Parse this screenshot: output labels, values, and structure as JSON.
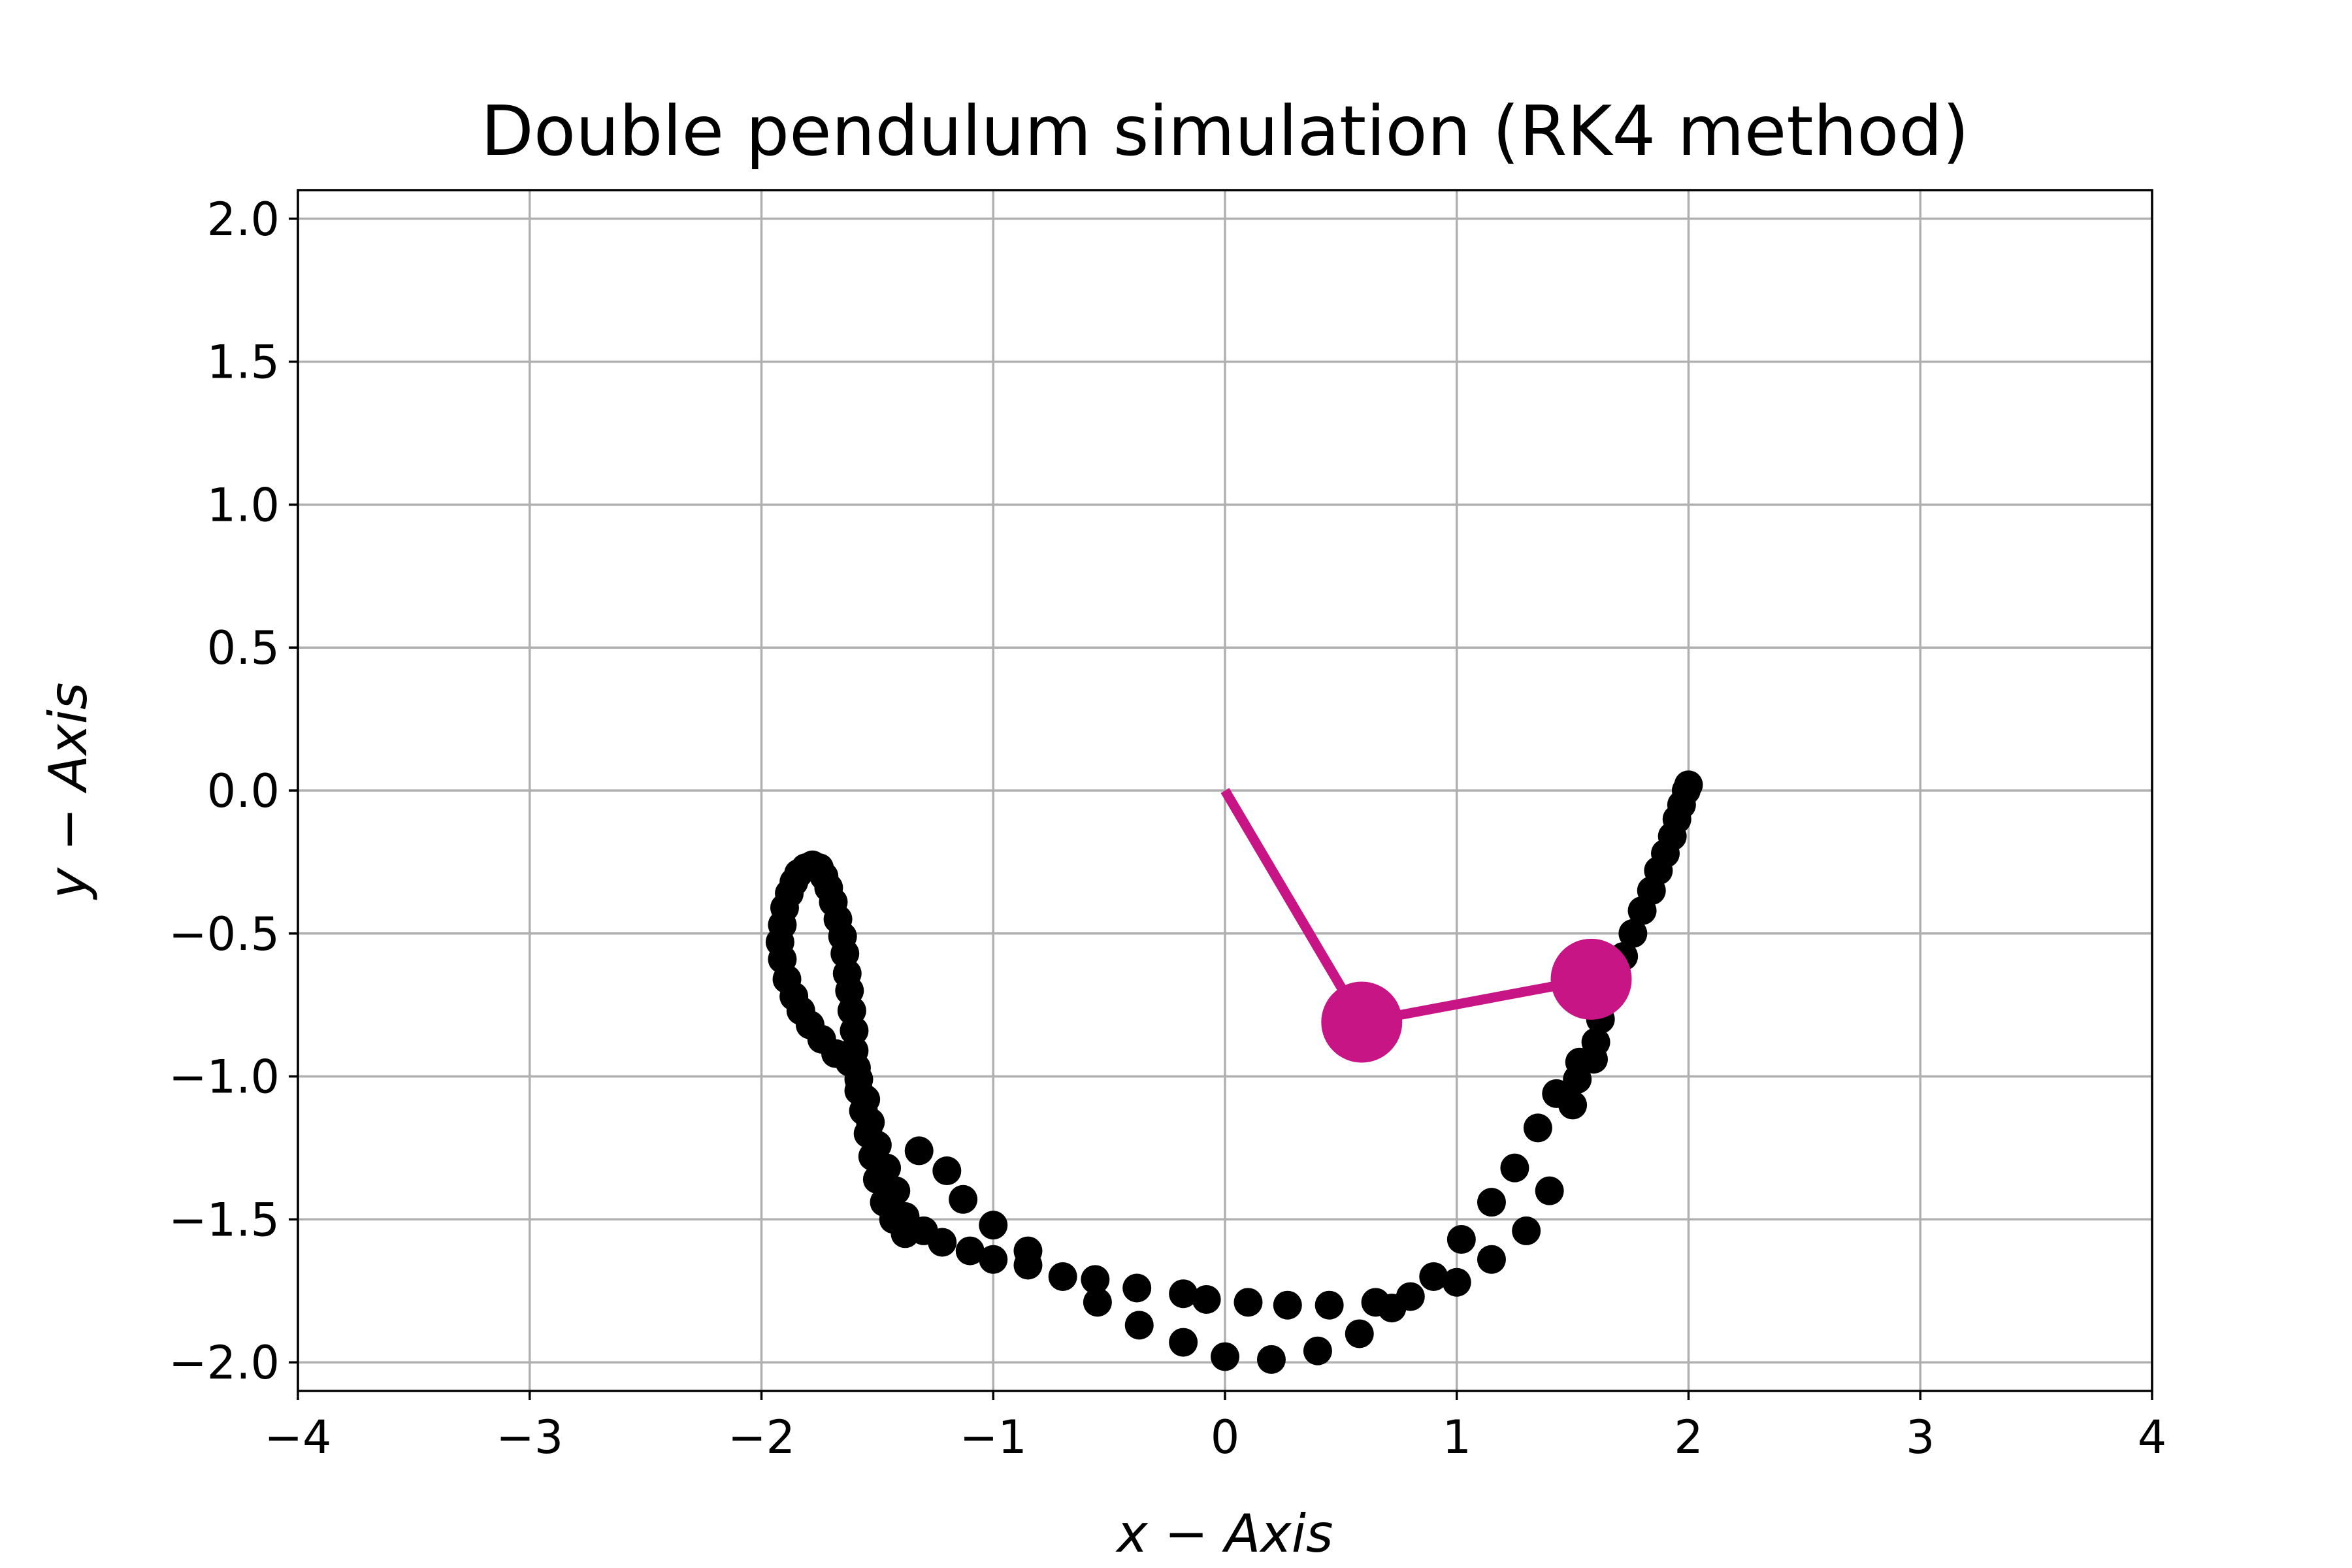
{
  "chart_data": {
    "type": "scatter",
    "title": "Double pendulum simulation (RK4 method)",
    "xlabel": "x − Axis",
    "ylabel": "y − Axis",
    "xlim": [
      -4,
      4
    ],
    "ylim": [
      -2.1,
      2.1
    ],
    "grid": true,
    "x_ticks": [
      -4,
      -3,
      -2,
      -1,
      0,
      1,
      2,
      3,
      4
    ],
    "x_tick_labels": [
      "−4",
      "−3",
      "−2",
      "−1",
      "0",
      "1",
      "2",
      "3",
      "4"
    ],
    "y_ticks": [
      2.0,
      1.5,
      1.0,
      0.5,
      0.0,
      -0.5,
      -1.0,
      -1.5,
      -2.0
    ],
    "y_tick_labels": [
      "2.0",
      "1.5",
      "1.0",
      "0.5",
      "0.0",
      "−0.5",
      "−1.0",
      "−1.5",
      "−2.0"
    ],
    "colors": {
      "trail": "#000000",
      "pendulum": "#c71585",
      "grid": "#b0b0b0"
    },
    "pendulum": {
      "pivot": [
        0.0,
        0.0
      ],
      "bob1": [
        0.59,
        -0.81
      ],
      "bob2": [
        1.58,
        -0.66
      ]
    },
    "series": [
      {
        "values": [
          [
            2.0,
            0.02
          ],
          [
            1.99,
            0.0
          ],
          [
            1.97,
            -0.05
          ],
          [
            1.95,
            -0.1
          ],
          [
            1.93,
            -0.16
          ],
          [
            1.9,
            -0.22
          ],
          [
            1.87,
            -0.28
          ],
          [
            1.84,
            -0.35
          ],
          [
            1.8,
            -0.42
          ],
          [
            1.76,
            -0.5
          ],
          [
            1.72,
            -0.58
          ],
          [
            1.68,
            -0.65
          ],
          [
            1.65,
            -0.72
          ],
          [
            1.62,
            -0.8
          ],
          [
            1.6,
            -0.88
          ],
          [
            1.59,
            -0.94
          ],
          [
            1.53,
            -0.95
          ],
          [
            1.52,
            -1.01
          ],
          [
            1.5,
            -1.1
          ],
          [
            1.43,
            -1.06
          ],
          [
            1.35,
            -1.18
          ],
          [
            1.4,
            -1.4
          ],
          [
            1.25,
            -1.32
          ],
          [
            1.15,
            -1.44
          ],
          [
            1.3,
            -1.54
          ],
          [
            1.15,
            -1.64
          ],
          [
            1.02,
            -1.57
          ],
          [
            1.0,
            -1.72
          ],
          [
            0.9,
            -1.7
          ],
          [
            0.8,
            -1.77
          ],
          [
            0.72,
            -1.81
          ],
          [
            0.65,
            -1.79
          ],
          [
            0.58,
            -1.9
          ],
          [
            0.45,
            -1.8
          ],
          [
            0.4,
            -1.96
          ],
          [
            0.27,
            -1.8
          ],
          [
            0.2,
            -1.99
          ],
          [
            0.1,
            -1.79
          ],
          [
            0.0,
            -1.98
          ],
          [
            -0.08,
            -1.78
          ],
          [
            -0.18,
            -1.76
          ],
          [
            -0.18,
            -1.93
          ],
          [
            -0.37,
            -1.87
          ],
          [
            -0.38,
            -1.74
          ],
          [
            -0.55,
            -1.79
          ],
          [
            -0.56,
            -1.71
          ],
          [
            -0.7,
            -1.7
          ],
          [
            -0.85,
            -1.66
          ],
          [
            -0.85,
            -1.61
          ],
          [
            -1.0,
            -1.64
          ],
          [
            -1.0,
            -1.52
          ],
          [
            -1.1,
            -1.61
          ],
          [
            -1.13,
            -1.43
          ],
          [
            -1.22,
            -1.58
          ],
          [
            -1.2,
            -1.33
          ],
          [
            -1.3,
            -1.54
          ],
          [
            -1.32,
            -1.26
          ],
          [
            -1.38,
            -1.49
          ],
          [
            -1.42,
            -1.4
          ],
          [
            -1.46,
            -1.32
          ],
          [
            -1.5,
            -1.24
          ],
          [
            -1.53,
            -1.16
          ],
          [
            -1.55,
            -1.08
          ],
          [
            -1.58,
            -1.01
          ],
          [
            -1.62,
            -0.95
          ],
          [
            -1.68,
            -0.92
          ],
          [
            -1.74,
            -0.87
          ],
          [
            -1.79,
            -0.82
          ],
          [
            -1.83,
            -0.77
          ],
          [
            -1.86,
            -0.72
          ],
          [
            -1.89,
            -0.66
          ],
          [
            -1.91,
            -0.59
          ],
          [
            -1.92,
            -0.53
          ],
          [
            -1.91,
            -0.47
          ],
          [
            -1.9,
            -0.41
          ],
          [
            -1.88,
            -0.36
          ],
          [
            -1.86,
            -0.32
          ],
          [
            -1.84,
            -0.29
          ],
          [
            -1.81,
            -0.27
          ],
          [
            -1.78,
            -0.26
          ],
          [
            -1.75,
            -0.27
          ],
          [
            -1.73,
            -0.3
          ],
          [
            -1.71,
            -0.34
          ],
          [
            -1.69,
            -0.39
          ],
          [
            -1.67,
            -0.45
          ],
          [
            -1.65,
            -0.51
          ],
          [
            -1.64,
            -0.57
          ],
          [
            -1.63,
            -0.64
          ],
          [
            -1.62,
            -0.7
          ],
          [
            -1.61,
            -0.77
          ],
          [
            -1.6,
            -0.84
          ],
          [
            -1.6,
            -0.91
          ],
          [
            -1.59,
            -0.97
          ],
          [
            -1.58,
            -1.05
          ],
          [
            -1.56,
            -1.12
          ],
          [
            -1.54,
            -1.2
          ],
          [
            -1.52,
            -1.28
          ],
          [
            -1.5,
            -1.36
          ],
          [
            -1.47,
            -1.44
          ],
          [
            -1.43,
            -1.5
          ],
          [
            -1.38,
            -1.55
          ]
        ]
      }
    ]
  }
}
